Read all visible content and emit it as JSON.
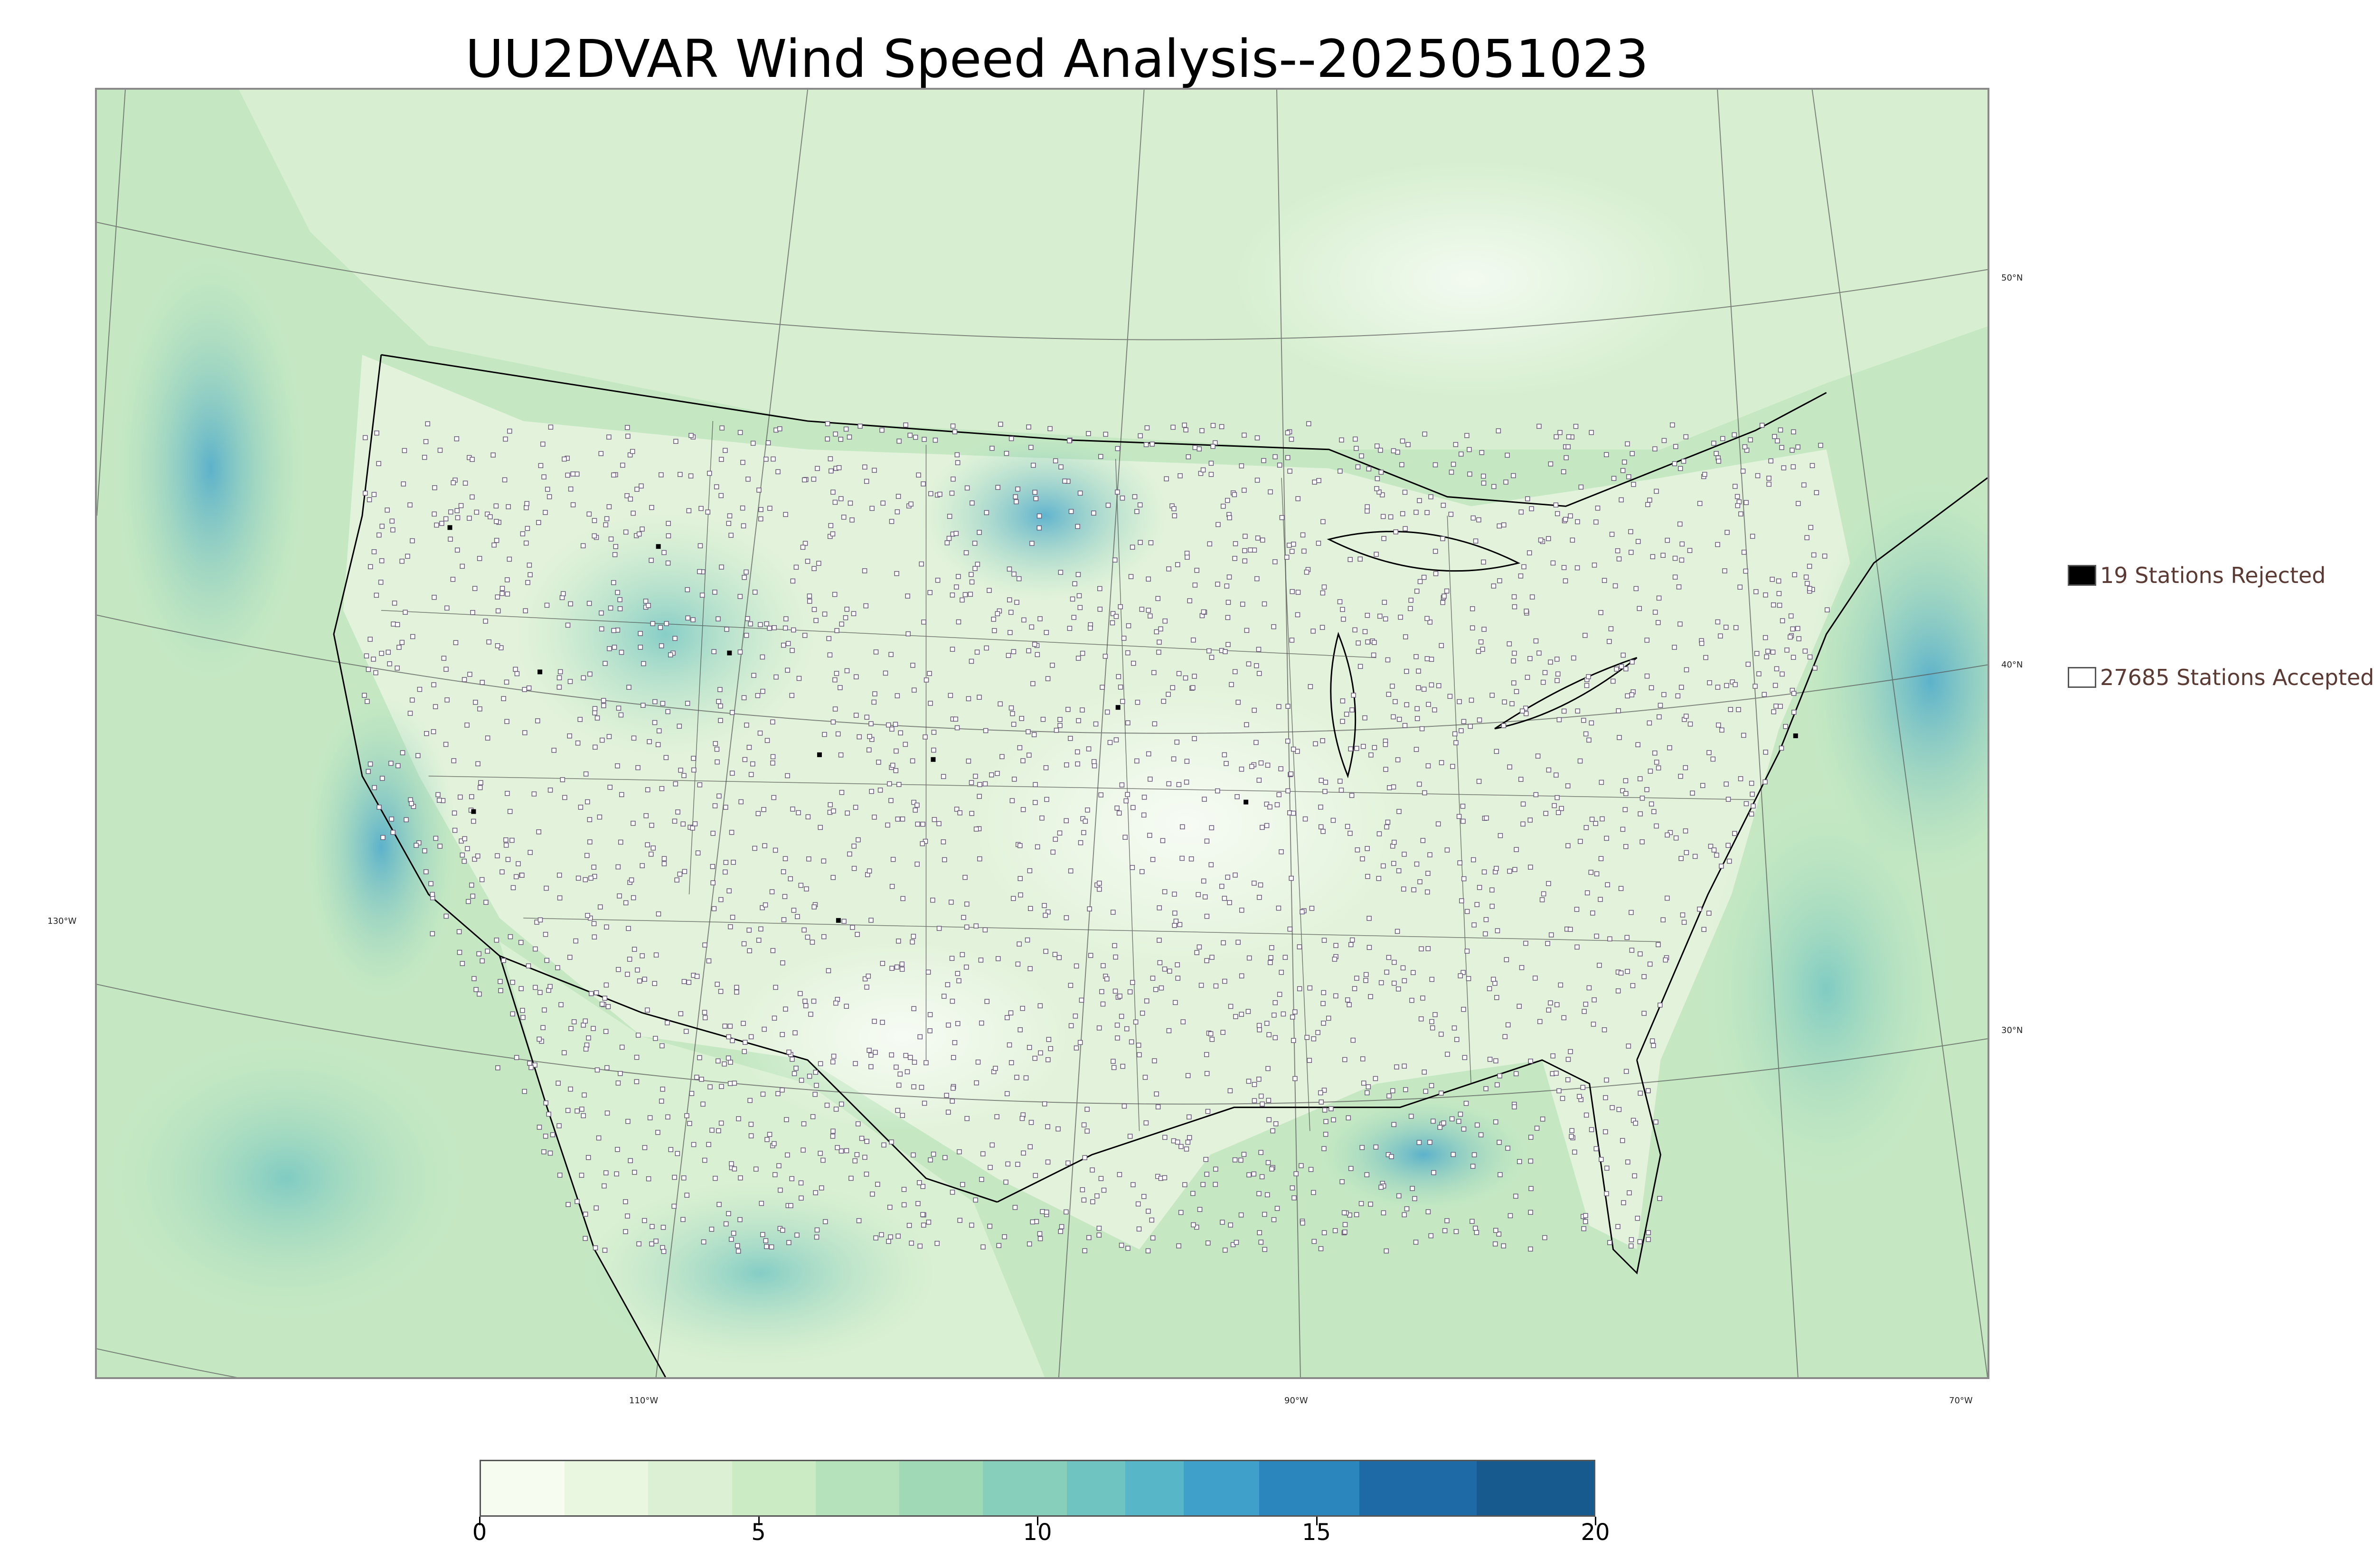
{
  "title": "UU2DVAR Wind Speed Analysis--2025051023",
  "legend": {
    "rejected_label": "19 Stations Rejected",
    "accepted_label": "27685 Stations Accepted",
    "rejected_color": "#000000",
    "accepted_color": "#ffffff"
  },
  "lon_labels": [
    "130°W",
    "110°W",
    "90°W",
    "70°W"
  ],
  "lat_labels": [
    "50°N",
    "40°N",
    "30°N"
  ],
  "colorbar": {
    "min": 0,
    "max": 20,
    "tick_values": [
      0,
      5,
      10,
      15,
      20
    ],
    "tick_labels": [
      "0",
      "5",
      "10",
      "15",
      "20"
    ],
    "colors": [
      "#f7fcf0",
      "#e9f7e1",
      "#dcf1d4",
      "#cbebc5",
      "#b6e2bb",
      "#a0d9b6",
      "#87cfbb",
      "#6fc4c2",
      "#58b6c9",
      "#3fa0c9",
      "#2a86bd",
      "#1d6aa6",
      "#165a8e"
    ]
  },
  "map": {
    "description_colors": {
      "water_low": "#d8efd4",
      "land_low": "#edf7e8",
      "wind_mid": "#9fd9b6",
      "wind_high": "#4aa8cc"
    }
  }
}
